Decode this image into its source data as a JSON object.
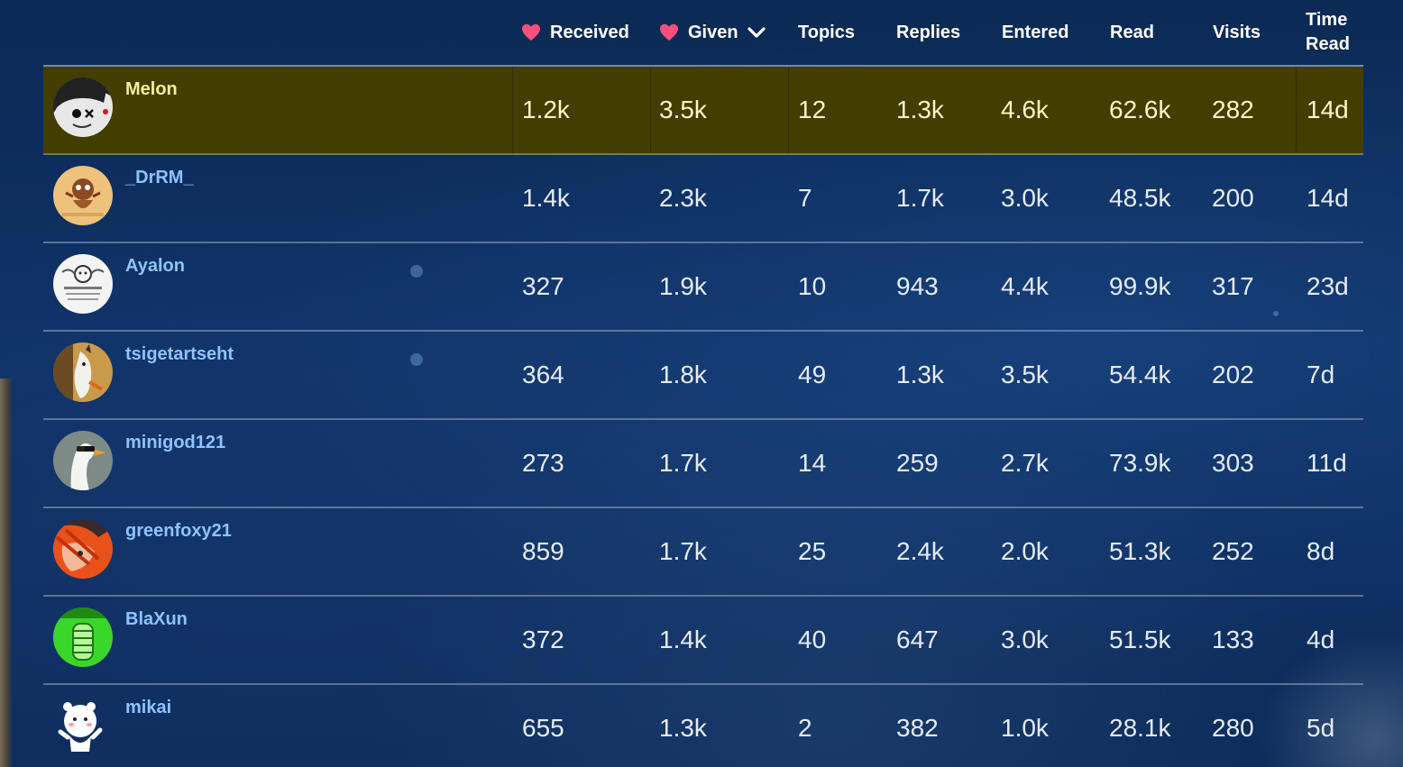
{
  "columns": {
    "received": "Received",
    "given": "Given",
    "topics": "Topics",
    "replies": "Replies",
    "entered": "Entered",
    "read": "Read",
    "visits": "Visits",
    "time_read_line1": "Time",
    "time_read_line2": "Read"
  },
  "icons": {
    "heart_color": "#ff4f7a",
    "sort": "chevron-down-icon"
  },
  "colors": {
    "highlight_row": "#433d00",
    "username": "#8ec3ff",
    "highlight_username": "#f4ee9a"
  },
  "rows": [
    {
      "username": "Melon",
      "received": "1.2k",
      "given": "3.5k",
      "topics": "12",
      "replies": "1.3k",
      "entered": "4.6k",
      "read": "62.6k",
      "visits": "282",
      "time_read": "14d"
    },
    {
      "username": "_DrRM_",
      "received": "1.4k",
      "given": "2.3k",
      "topics": "7",
      "replies": "1.7k",
      "entered": "3.0k",
      "read": "48.5k",
      "visits": "200",
      "time_read": "14d"
    },
    {
      "username": "Ayalon",
      "received": "327",
      "given": "1.9k",
      "topics": "10",
      "replies": "943",
      "entered": "4.4k",
      "read": "99.9k",
      "visits": "317",
      "time_read": "23d"
    },
    {
      "username": "tsigetartseht",
      "received": "364",
      "given": "1.8k",
      "topics": "49",
      "replies": "1.3k",
      "entered": "3.5k",
      "read": "54.4k",
      "visits": "202",
      "time_read": "7d"
    },
    {
      "username": "minigod121",
      "received": "273",
      "given": "1.7k",
      "topics": "14",
      "replies": "259",
      "entered": "2.7k",
      "read": "73.9k",
      "visits": "303",
      "time_read": "11d"
    },
    {
      "username": "greenfoxy21",
      "received": "859",
      "given": "1.7k",
      "topics": "25",
      "replies": "2.4k",
      "entered": "2.0k",
      "read": "51.3k",
      "visits": "252",
      "time_read": "8d"
    },
    {
      "username": "BlaXun",
      "received": "372",
      "given": "1.4k",
      "topics": "40",
      "replies": "647",
      "entered": "3.0k",
      "read": "51.5k",
      "visits": "133",
      "time_read": "4d"
    },
    {
      "username": "mikai",
      "received": "655",
      "given": "1.3k",
      "topics": "2",
      "replies": "382",
      "entered": "1.0k",
      "read": "28.1k",
      "visits": "280",
      "time_read": "5d"
    }
  ]
}
